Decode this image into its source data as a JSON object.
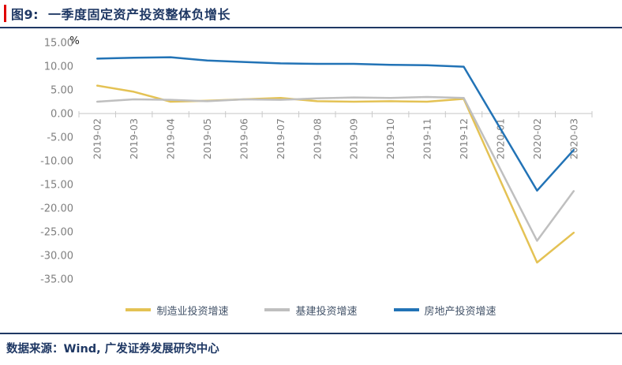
{
  "figure": {
    "label": "图9:",
    "title": "一季度固定资产投资整体负增长"
  },
  "footer": {
    "text": "数据来源：Wind, 广发证券发展研究中心"
  },
  "colors": {
    "accent_red": "#E00000",
    "navy": "#1F3864",
    "axis_text": "#7F7F7F",
    "axis_line": "#D9D9D9",
    "tick": "#C9C9C9",
    "unit_text": "#262626"
  },
  "chart_data": {
    "type": "line",
    "unit_label": "%",
    "categories": [
      "2019-02",
      "2019-03",
      "2019-04",
      "2019-05",
      "2019-06",
      "2019-07",
      "2019-08",
      "2019-09",
      "2019-10",
      "2019-11",
      "2019-12",
      "2020-01",
      "2020-02",
      "2020-03"
    ],
    "series": [
      {
        "name": "制造业投资增速",
        "color": "#E4C254",
        "values": [
          5.9,
          4.6,
          2.5,
          2.7,
          3.0,
          3.3,
          2.6,
          2.5,
          2.6,
          2.5,
          3.1,
          null,
          -31.5,
          -25.2
        ]
      },
      {
        "name": "基建投资增速",
        "color": "#BFBFBF",
        "values": [
          2.5,
          3.0,
          2.9,
          2.6,
          3.0,
          2.9,
          3.2,
          3.4,
          3.3,
          3.5,
          3.3,
          null,
          -26.9,
          -16.4
        ]
      },
      {
        "name": "房地产投资增速",
        "color": "#2273B6",
        "values": [
          11.6,
          11.8,
          11.9,
          11.2,
          10.9,
          10.6,
          10.5,
          10.5,
          10.3,
          10.2,
          9.9,
          null,
          -16.3,
          -7.7
        ]
      }
    ],
    "ylim": [
      -35,
      15
    ],
    "ytick_step": 5,
    "ytick_decimals": 2,
    "grid": false,
    "legend_position": "bottom",
    "x_labels_rotated_deg": -90
  }
}
